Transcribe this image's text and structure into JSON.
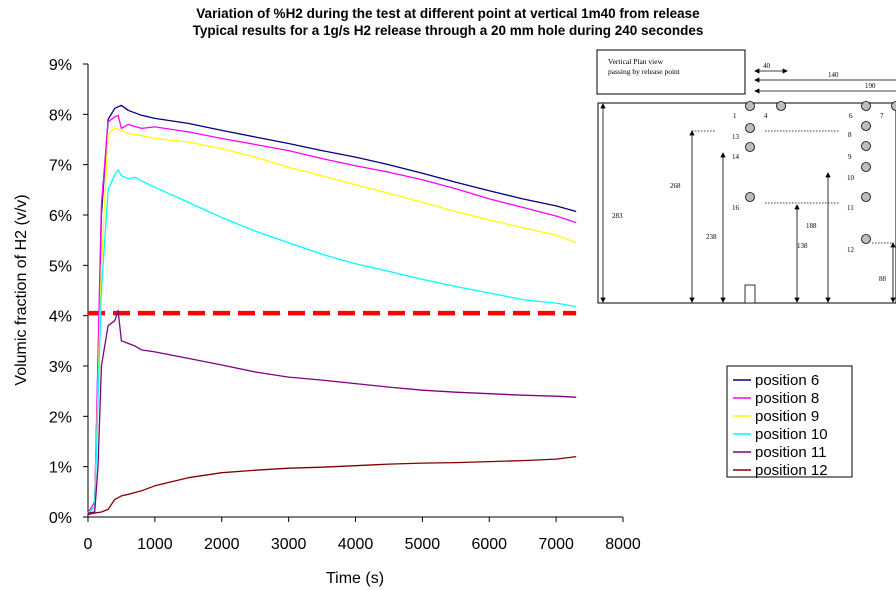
{
  "title_line1": "Variation of %H2 during the test at different point at vertical 1m40 from release",
  "title_line2": "Typical results for a 1g/s H2 release through a 20 mm hole during 240 secondes",
  "chart_data": {
    "type": "line",
    "xlabel": "Time (s)",
    "ylabel": "Volumic fraction of H2 (v/v)",
    "xlim": [
      0,
      8000
    ],
    "ylim": [
      0,
      0.09
    ],
    "xticks": [
      0,
      1000,
      2000,
      3000,
      4000,
      5000,
      6000,
      7000,
      8000
    ],
    "yticks": [
      0,
      0.01,
      0.02,
      0.03,
      0.04,
      0.05,
      0.06,
      0.07,
      0.08,
      0.09
    ],
    "xtick_labels": [
      "0",
      "1000",
      "2000",
      "3000",
      "4000",
      "5000",
      "6000",
      "7000",
      "8000"
    ],
    "ytick_labels": [
      "0%",
      "1%",
      "2%",
      "3%",
      "4%",
      "5%",
      "6%",
      "7%",
      "8%",
      "9%"
    ],
    "threshold": {
      "y": 0.0405,
      "color": "#ff0000",
      "style": "dashed"
    },
    "legend_position": "right",
    "series": [
      {
        "name": "position 6",
        "color": "#000080",
        "x": [
          0,
          100,
          200,
          300,
          400,
          500,
          600,
          800,
          1000,
          1500,
          2000,
          2500,
          3000,
          3500,
          4000,
          4500,
          5000,
          5500,
          6000,
          6500,
          7000,
          7300
        ],
        "y": [
          0.0008,
          0.002,
          0.06,
          0.079,
          0.0812,
          0.0818,
          0.0808,
          0.0798,
          0.0792,
          0.0782,
          0.0768,
          0.0755,
          0.0742,
          0.0728,
          0.0715,
          0.07,
          0.0683,
          0.0665,
          0.0648,
          0.0632,
          0.0618,
          0.0607
        ]
      },
      {
        "name": "position 8",
        "color": "#ff00ff",
        "x": [
          0,
          100,
          200,
          300,
          400,
          450,
          500,
          600,
          800,
          1000,
          1500,
          2000,
          2500,
          3000,
          3500,
          4000,
          4500,
          5000,
          5500,
          6000,
          6500,
          7000,
          7300
        ],
        "y": [
          0.0008,
          0.003,
          0.062,
          0.0785,
          0.0795,
          0.0798,
          0.0772,
          0.078,
          0.0772,
          0.0775,
          0.0765,
          0.0752,
          0.074,
          0.0728,
          0.0712,
          0.0698,
          0.0685,
          0.067,
          0.0652,
          0.0632,
          0.0615,
          0.0598,
          0.0585
        ]
      },
      {
        "name": "position 9",
        "color": "#ffff00",
        "x": [
          0,
          100,
          200,
          300,
          400,
          500,
          600,
          800,
          1000,
          1500,
          2000,
          2500,
          3000,
          3500,
          4000,
          4500,
          5000,
          5500,
          6000,
          6500,
          7000,
          7300
        ],
        "y": [
          0.0008,
          0.002,
          0.05,
          0.076,
          0.0772,
          0.0768,
          0.0762,
          0.0758,
          0.0752,
          0.0745,
          0.0732,
          0.0715,
          0.0695,
          0.0678,
          0.066,
          0.0643,
          0.0625,
          0.0607,
          0.059,
          0.0575,
          0.056,
          0.0545
        ]
      },
      {
        "name": "position 10",
        "color": "#00ffff",
        "x": [
          0,
          100,
          200,
          300,
          400,
          450,
          500,
          600,
          700,
          800,
          1000,
          1500,
          2000,
          2500,
          3000,
          3500,
          4000,
          4500,
          5000,
          5500,
          6000,
          6500,
          7000,
          7300
        ],
        "y": [
          0.0008,
          0.002,
          0.045,
          0.065,
          0.068,
          0.069,
          0.0678,
          0.0672,
          0.0675,
          0.0668,
          0.0655,
          0.0625,
          0.0595,
          0.0568,
          0.0545,
          0.0522,
          0.0503,
          0.0488,
          0.0472,
          0.0458,
          0.0445,
          0.0432,
          0.0425,
          0.0418
        ]
      },
      {
        "name": "position 11",
        "color": "#800080",
        "x": [
          0,
          100,
          150,
          200,
          300,
          400,
          450,
          500,
          600,
          700,
          800,
          1000,
          1500,
          2000,
          2500,
          3000,
          3500,
          4000,
          4500,
          5000,
          5500,
          6000,
          6500,
          7000,
          7300
        ],
        "y": [
          0.0008,
          0.001,
          0.01,
          0.03,
          0.038,
          0.039,
          0.041,
          0.035,
          0.0345,
          0.034,
          0.0332,
          0.0328,
          0.0315,
          0.0302,
          0.0288,
          0.0278,
          0.0272,
          0.0265,
          0.0258,
          0.0252,
          0.0248,
          0.0245,
          0.0242,
          0.024,
          0.0238
        ]
      },
      {
        "name": "position 12",
        "color": "#800000",
        "x": [
          0,
          100,
          200,
          300,
          400,
          500,
          600,
          800,
          1000,
          1500,
          2000,
          2500,
          3000,
          3500,
          4000,
          4500,
          5000,
          5500,
          6000,
          6500,
          7000,
          7300
        ],
        "y": [
          0.0005,
          0.0008,
          0.001,
          0.0015,
          0.0035,
          0.0042,
          0.0045,
          0.0052,
          0.0062,
          0.0078,
          0.0088,
          0.0093,
          0.0097,
          0.0099,
          0.0102,
          0.0105,
          0.0107,
          0.0108,
          0.011,
          0.0112,
          0.0115,
          0.012
        ]
      }
    ]
  },
  "inset": {
    "header_line1": "Vertical Plan view",
    "header_line2": "passing by release point",
    "dim_40": "40",
    "dim_140": "140",
    "dim_190": "190",
    "dim_283": "283",
    "dim_268": "268",
    "dim_238": "238",
    "dim_138": "138",
    "dim_188": "188",
    "dim_88": "88",
    "labels": [
      "1",
      "13",
      "14",
      "16",
      "4",
      "6",
      "8",
      "9",
      "10",
      "11",
      "12",
      "7"
    ]
  }
}
